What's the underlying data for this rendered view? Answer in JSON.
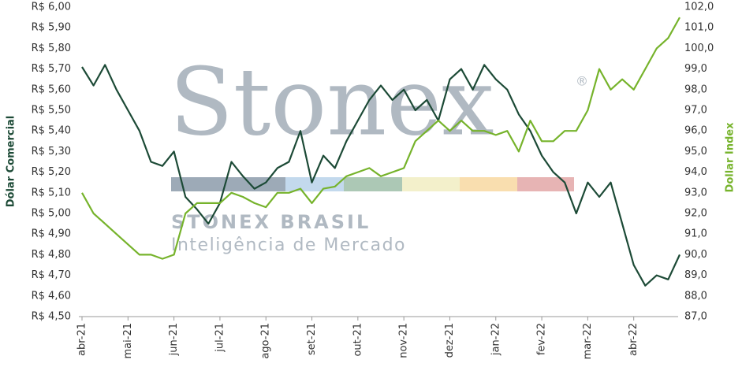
{
  "chart_data": {
    "type": "line",
    "watermark": {
      "logo": "Stonex",
      "registered": "®",
      "brand": "STONEX BRASIL",
      "tagline": "Inteligência de Mercado"
    },
    "ylabel": "Dólar Comercial",
    "y2label": "Dollar Index",
    "categories": [
      "abr-21",
      null,
      null,
      null,
      "mai-21",
      null,
      null,
      null,
      "jun-21",
      null,
      null,
      null,
      "jul-21",
      null,
      null,
      null,
      "ago-21",
      null,
      null,
      null,
      "set-21",
      null,
      null,
      null,
      "out-21",
      null,
      null,
      null,
      "nov-21",
      null,
      null,
      null,
      "dez-21",
      null,
      null,
      null,
      "jan-22",
      null,
      null,
      null,
      "fev-22",
      null,
      null,
      null,
      "mar-22",
      null,
      null,
      null,
      "abr-22",
      null,
      null,
      null,
      null
    ],
    "series": [
      {
        "name": "Dólar Comercial",
        "color": "#1c4a36",
        "axis": "y",
        "values": [
          5.71,
          5.62,
          5.72,
          5.6,
          5.5,
          5.4,
          5.25,
          5.23,
          5.3,
          5.08,
          5.02,
          4.95,
          5.05,
          5.25,
          5.18,
          5.12,
          5.15,
          5.22,
          5.25,
          5.4,
          5.15,
          5.28,
          5.22,
          5.35,
          5.45,
          5.55,
          5.62,
          5.55,
          5.6,
          5.5,
          5.55,
          5.45,
          5.65,
          5.7,
          5.6,
          5.72,
          5.65,
          5.6,
          5.48,
          5.4,
          5.28,
          5.2,
          5.15,
          5.0,
          5.15,
          5.08,
          5.15,
          4.95,
          4.75,
          4.65,
          4.7,
          4.68,
          4.8
        ]
      },
      {
        "name": "Dollar Index",
        "color": "#76b32b",
        "axis": "y2",
        "values": [
          93.0,
          92.0,
          91.5,
          91.0,
          90.5,
          90.0,
          90.0,
          89.8,
          90.0,
          92.0,
          92.5,
          92.5,
          92.5,
          93.0,
          92.8,
          92.5,
          92.3,
          93.0,
          93.0,
          93.2,
          92.5,
          93.2,
          93.3,
          93.8,
          94.0,
          94.2,
          93.8,
          94.0,
          94.2,
          95.5,
          96.0,
          96.5,
          96.0,
          96.5,
          96.0,
          96.0,
          95.8,
          96.0,
          95.0,
          96.5,
          95.5,
          95.5,
          96.0,
          96.0,
          97.0,
          99.0,
          98.0,
          98.5,
          98.0,
          99.0,
          100.0,
          100.5,
          101.5
        ]
      }
    ],
    "ylim": [
      4.5,
      6.0
    ],
    "yticks": [
      {
        "value": 4.5,
        "label": "R$ 4,50"
      },
      {
        "value": 4.6,
        "label": "R$ 4,60"
      },
      {
        "value": 4.7,
        "label": "R$ 4,70"
      },
      {
        "value": 4.8,
        "label": "R$ 4,80"
      },
      {
        "value": 4.9,
        "label": "R$ 4,90"
      },
      {
        "value": 5.0,
        "label": "R$ 5,00"
      },
      {
        "value": 5.1,
        "label": "R$ 5,10"
      },
      {
        "value": 5.2,
        "label": "R$ 5,20"
      },
      {
        "value": 5.3,
        "label": "R$ 5,30"
      },
      {
        "value": 5.4,
        "label": "R$ 5,40"
      },
      {
        "value": 5.5,
        "label": "R$ 5,50"
      },
      {
        "value": 5.6,
        "label": "R$ 5,60"
      },
      {
        "value": 5.7,
        "label": "R$ 5,70"
      },
      {
        "value": 5.8,
        "label": "R$ 5,80"
      },
      {
        "value": 5.9,
        "label": "R$ 5,90"
      },
      {
        "value": 6.0,
        "label": "R$ 6,00"
      }
    ],
    "y2lim": [
      87,
      102
    ],
    "y2ticks": [
      {
        "value": 87,
        "label": "87,0"
      },
      {
        "value": 88,
        "label": "88,0"
      },
      {
        "value": 89,
        "label": "89,0"
      },
      {
        "value": 90,
        "label": "90,0"
      },
      {
        "value": 91,
        "label": "91,0"
      },
      {
        "value": 92,
        "label": "92,0"
      },
      {
        "value": 93,
        "label": "93,0"
      },
      {
        "value": 94,
        "label": "94,0"
      },
      {
        "value": 95,
        "label": "95,0"
      },
      {
        "value": 96,
        "label": "96,0"
      },
      {
        "value": 97,
        "label": "97,0"
      },
      {
        "value": 98,
        "label": "98,0"
      },
      {
        "value": 99,
        "label": "99,0"
      },
      {
        "value": 100,
        "label": "100,0"
      },
      {
        "value": 101,
        "label": "101,0"
      },
      {
        "value": 102,
        "label": "102,0"
      }
    ],
    "grid": false
  }
}
